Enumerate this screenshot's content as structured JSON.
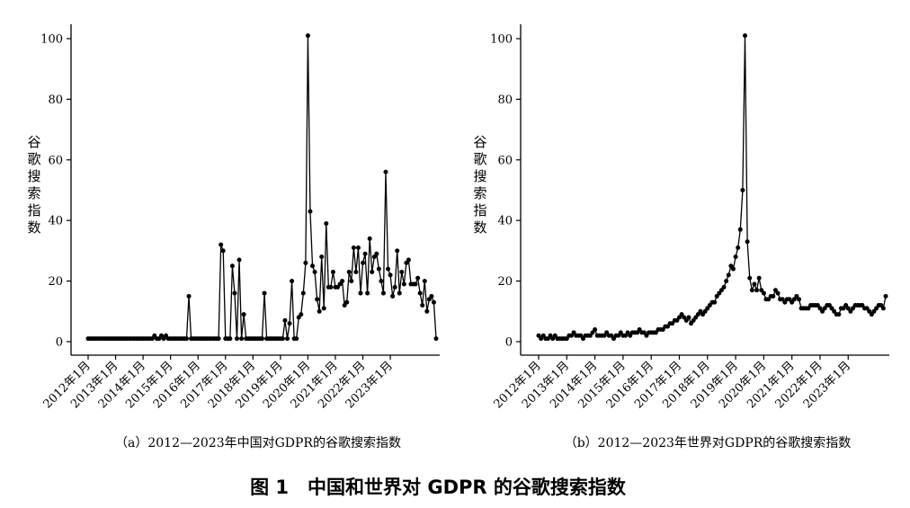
{
  "figure_title": "图 1　中国和世界对 GDPR 的谷歌搜索指数",
  "chart_data": [
    {
      "type": "line",
      "caption": "（a）2012—2023年中国对GDPR的谷歌搜索指数",
      "ylabel": "谷歌搜索指数",
      "xlabel": "",
      "ylim": [
        0,
        100
      ],
      "yticks": [
        0,
        20,
        40,
        60,
        80,
        100
      ],
      "xticks": [
        "2012年1月",
        "2013年1月",
        "2014年1月",
        "2015年1月",
        "2016年1月",
        "2017年1月",
        "2018年1月",
        "2019年1月",
        "2020年1月",
        "2021年1月",
        "2022年1月",
        "2023年1月"
      ],
      "x_start": "2012-01",
      "grid": false,
      "series": [
        {
          "values": [
            1,
            1,
            1,
            1,
            1,
            1,
            1,
            1,
            1,
            1,
            1,
            1,
            1,
            1,
            1,
            1,
            1,
            1,
            1,
            1,
            1,
            1,
            1,
            1,
            1,
            1,
            1,
            1,
            1,
            2,
            1,
            1,
            2,
            1,
            2,
            1,
            1,
            1,
            1,
            1,
            1,
            1,
            1,
            1,
            15,
            1,
            1,
            1,
            1,
            1,
            1,
            1,
            1,
            1,
            1,
            1,
            1,
            1,
            32,
            30,
            1,
            1,
            1,
            25,
            16,
            1,
            27,
            1,
            9,
            1,
            1,
            1,
            1,
            1,
            1,
            1,
            1,
            16,
            1,
            1,
            1,
            1,
            1,
            1,
            1,
            1,
            7,
            1,
            6,
            20,
            1,
            1,
            8,
            9,
            16,
            26,
            101,
            43,
            25,
            23,
            14,
            10,
            28,
            11,
            39,
            18,
            18,
            23,
            18,
            18,
            19,
            20,
            12,
            13,
            23,
            20,
            31,
            23,
            31,
            16,
            26,
            29,
            16,
            34,
            23,
            28,
            29,
            24,
            20,
            16,
            56,
            24,
            22,
            15,
            18,
            30,
            16,
            23,
            19,
            26,
            27,
            19,
            19,
            19,
            21,
            16,
            12,
            20,
            10,
            14,
            15,
            13,
            1
          ]
        }
      ]
    },
    {
      "type": "line",
      "caption": "（b）2012—2023年世界对GDPR的谷歌搜索指数",
      "ylabel": "谷歌搜索指数",
      "xlabel": "",
      "ylim": [
        0,
        100
      ],
      "yticks": [
        0,
        20,
        40,
        60,
        80,
        100
      ],
      "xticks": [
        "2012年1月",
        "2013年1月",
        "2014年1月",
        "2015年1月",
        "2016年1月",
        "2017年1月",
        "2018年1月",
        "2019年1月",
        "2020年1月",
        "2021年1月",
        "2022年1月",
        "2023年1月"
      ],
      "x_start": "2012-01",
      "grid": false,
      "series": [
        {
          "values": [
            2,
            1,
            2,
            1,
            1,
            2,
            1,
            2,
            1,
            1,
            1,
            1,
            1,
            2,
            2,
            3,
            2,
            2,
            2,
            1,
            2,
            2,
            2,
            3,
            4,
            2,
            2,
            2,
            2,
            3,
            2,
            2,
            1,
            2,
            2,
            3,
            2,
            2,
            3,
            2,
            3,
            3,
            3,
            4,
            3,
            3,
            2,
            3,
            3,
            3,
            3,
            4,
            4,
            4,
            5,
            5,
            6,
            6,
            7,
            7,
            8,
            9,
            8,
            7,
            8,
            6,
            7,
            8,
            9,
            10,
            9,
            10,
            11,
            12,
            13,
            13,
            15,
            16,
            17,
            18,
            20,
            22,
            25,
            24,
            28,
            31,
            37,
            50,
            101,
            33,
            21,
            17,
            19,
            17,
            21,
            17,
            16,
            14,
            14,
            15,
            15,
            17,
            16,
            14,
            14,
            13,
            14,
            14,
            13,
            14,
            15,
            14,
            11,
            11,
            11,
            11,
            12,
            12,
            12,
            12,
            11,
            10,
            11,
            12,
            12,
            11,
            10,
            9,
            9,
            11,
            11,
            12,
            11,
            10,
            11,
            12,
            12,
            12,
            12,
            11,
            11,
            10,
            9,
            10,
            11,
            12,
            12,
            11,
            15
          ]
        }
      ]
    }
  ]
}
